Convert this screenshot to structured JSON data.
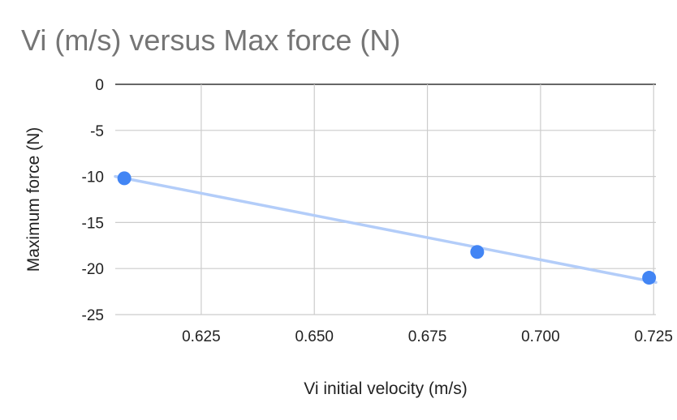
{
  "chart_data": {
    "type": "scatter",
    "title": "Vi (m/s) versus Max force (N)",
    "xlabel": "Vi initial velocity (m/s)",
    "ylabel": "Maximum force (N)",
    "xlim": [
      0.606,
      0.7255
    ],
    "ylim": [
      -25,
      0
    ],
    "x_ticks": [
      0.625,
      0.65,
      0.675,
      0.7,
      0.725
    ],
    "x_tick_labels": [
      "0.625",
      "0.650",
      "0.675",
      "0.700",
      "0.725"
    ],
    "y_ticks": [
      0,
      -5,
      -10,
      -15,
      -20,
      -25
    ],
    "y_tick_labels": [
      "0",
      "-5",
      "-10",
      "-15",
      "-20",
      "-25"
    ],
    "grid": true,
    "series": [
      {
        "x": [
          0.608,
          0.686,
          0.724
        ],
        "y": [
          -10.2,
          -18.2,
          -21.0
        ],
        "color": "#4285f4"
      }
    ],
    "trendline": {
      "type": "linear",
      "x": [
        0.606,
        0.7255
      ],
      "y": [
        -10.0,
        -21.5
      ],
      "color": "#b3cdf9"
    }
  }
}
